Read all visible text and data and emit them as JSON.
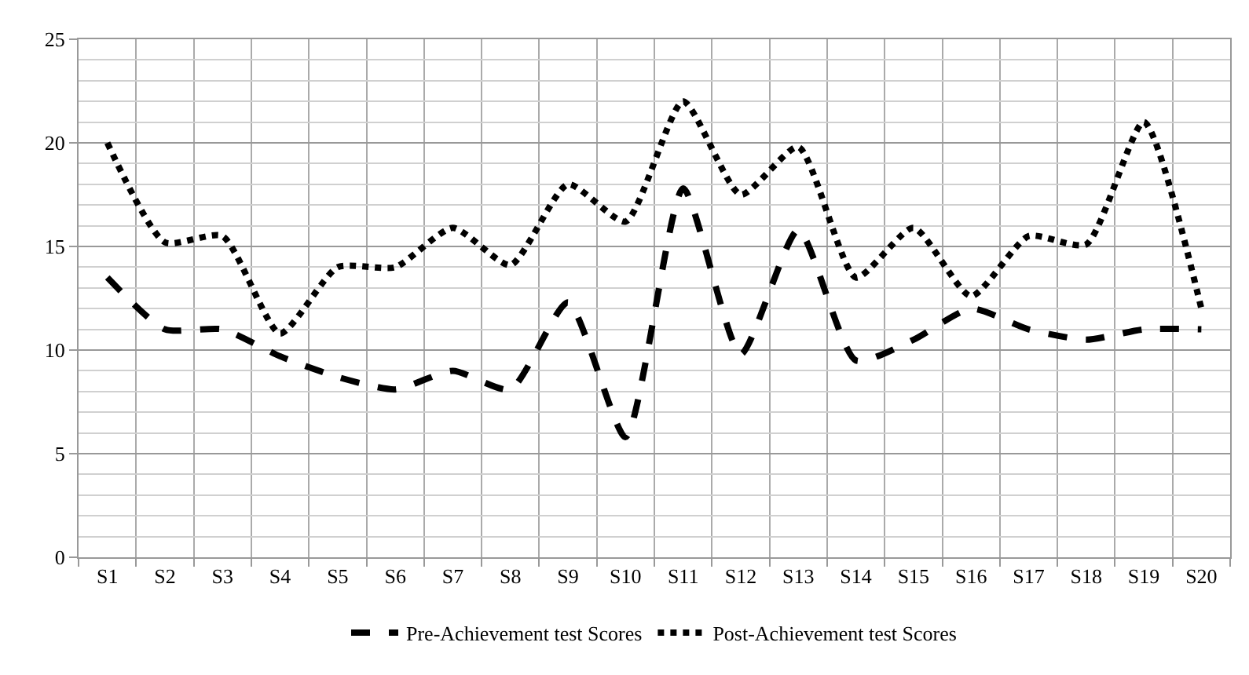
{
  "chart_data": {
    "type": "line",
    "categories": [
      "S1",
      "S2",
      "S3",
      "S4",
      "S5",
      "S6",
      "S7",
      "S8",
      "S9",
      "S10",
      "S11",
      "S12",
      "S13",
      "S14",
      "S15",
      "S16",
      "S17",
      "S18",
      "S19",
      "S20"
    ],
    "series": [
      {
        "name": "Pre-Achievement test Scores",
        "color": "#000000",
        "line_style": "dashed",
        "values": [
          13.5,
          11,
          11,
          9.7,
          8.7,
          8.1,
          9,
          8.1,
          12.3,
          5.8,
          17.8,
          9.8,
          15.8,
          9.5,
          10.5,
          12,
          11,
          10.5,
          11,
          11
        ]
      },
      {
        "name": "Post-Achievement test Scores",
        "color": "#000000",
        "line_style": "dotted",
        "values": [
          20,
          15.2,
          15.5,
          10.8,
          14,
          14,
          15.9,
          14.1,
          18,
          16.2,
          22,
          17.5,
          19.8,
          13.5,
          15.9,
          12.6,
          15.5,
          15.1,
          21,
          12
        ]
      }
    ],
    "ylim": [
      0,
      25
    ],
    "yticks": [
      0,
      5,
      10,
      15,
      20,
      25
    ],
    "grid": true,
    "legend": "bottom",
    "marker": "none"
  }
}
